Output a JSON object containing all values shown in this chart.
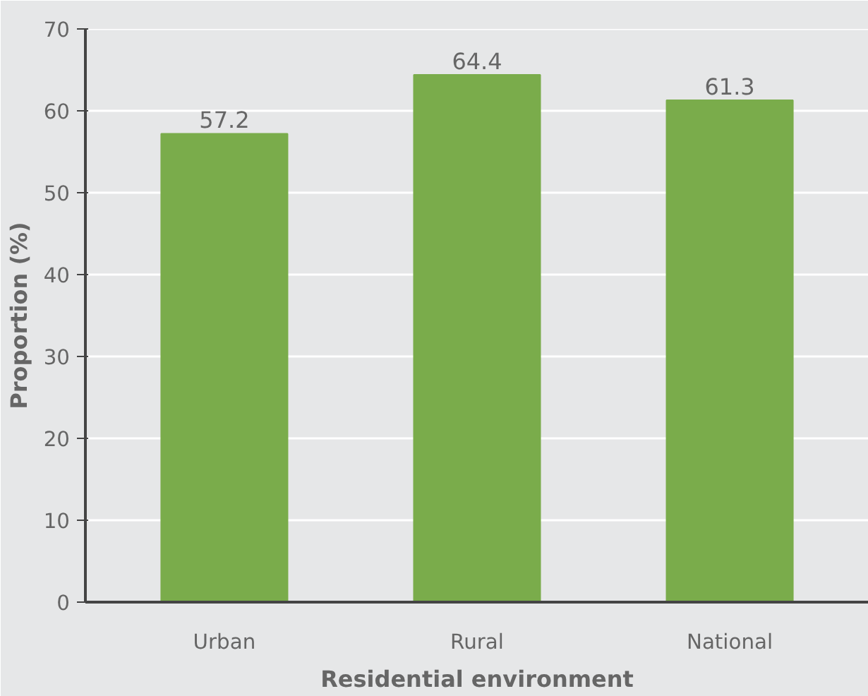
{
  "chart_data": {
    "type": "bar",
    "xlabel": "Residential environment",
    "ylabel": "Proportion (%)",
    "categories": [
      "Urban",
      "Rural",
      "National"
    ],
    "values": [
      57.2,
      64.4,
      61.3
    ],
    "color": "#7aac4b",
    "ylim": [
      0,
      70
    ],
    "yticks": [
      0,
      10,
      20,
      30,
      40,
      50,
      60,
      70
    ],
    "grid": "y",
    "data_labels": true
  }
}
